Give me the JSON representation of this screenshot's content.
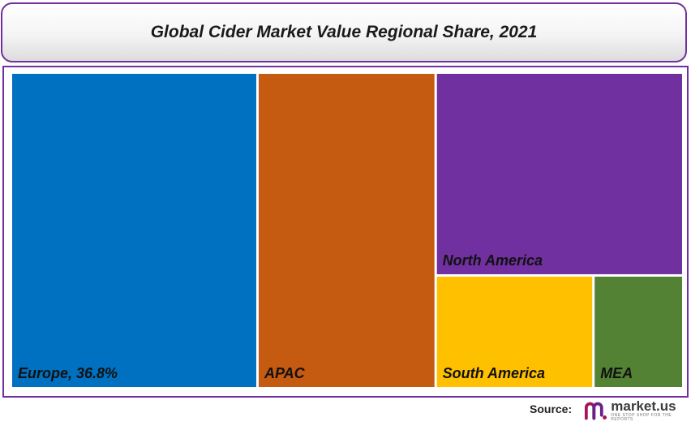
{
  "title": "Global Cider Market Value Regional Share, 2021",
  "source_label": "Source:",
  "logo": {
    "name": "market.us",
    "tagline": "ONE STOP SHOP FOR THE REPORTS"
  },
  "chart_data": {
    "type": "treemap",
    "title": "Global Cider Market Value Regional Share, 2021",
    "tiles": [
      {
        "name": "Europe",
        "label": "Europe, 36.8%",
        "value": 36.8,
        "color": "#0070c0"
      },
      {
        "name": "APAC",
        "label": "APAC",
        "value": 26.6,
        "color": "#c55a11"
      },
      {
        "name": "North America",
        "label": "North America",
        "value": 23.7,
        "color": "#7030a0"
      },
      {
        "name": "South America",
        "label": "South America",
        "value": 8.3,
        "color": "#ffc000"
      },
      {
        "name": "MEA",
        "label": "MEA",
        "value": 4.6,
        "color": "#548235"
      }
    ]
  }
}
